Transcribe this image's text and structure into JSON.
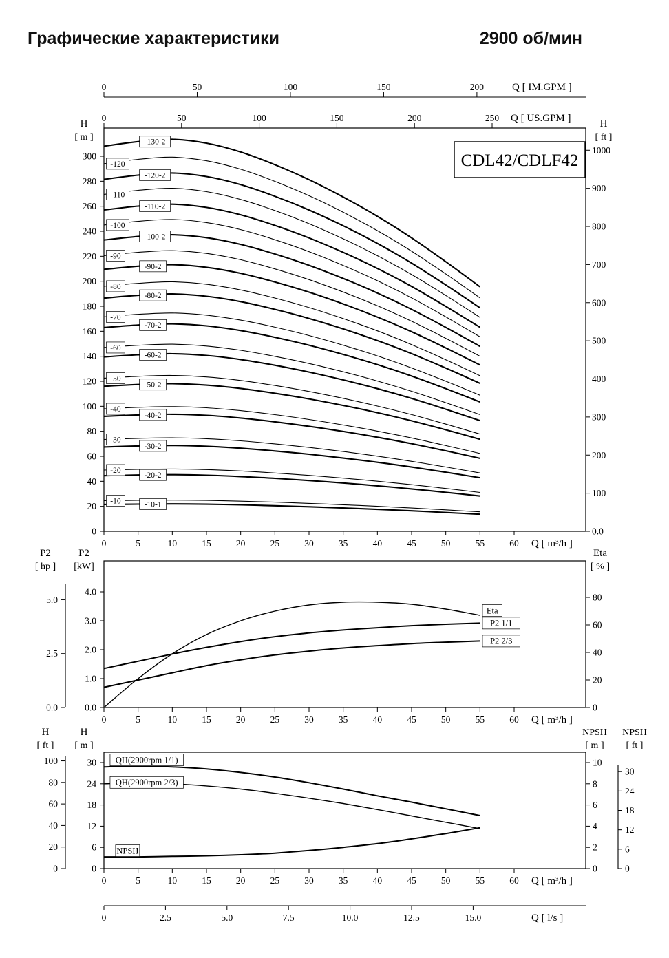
{
  "header": {
    "title": "Графические характеристики",
    "rpm": "2900 об/мин"
  },
  "model_box": "CDL42/CDLF42",
  "chart_data": [
    {
      "id": "qh-main",
      "type": "line",
      "title": "CDL42/CDLF42 Q-H curves, 2900 rpm",
      "x_axis": {
        "unit": "Q [ m³/h ]",
        "ticks": [
          "0",
          "5",
          "10",
          "15",
          "20",
          "25",
          "30",
          "35",
          "40",
          "45",
          "50",
          "55",
          "60"
        ]
      },
      "xlim_m3h": [
        0,
        70.5
      ],
      "top_axes": [
        {
          "unit": "Q [ IM.GPM ]",
          "ticks": [
            "0",
            "50",
            "100",
            "150",
            "200"
          ],
          "m3h_per_unit": 0.27277
        },
        {
          "unit": "Q [ US.GPM ]",
          "ticks": [
            "0",
            "50",
            "100",
            "150",
            "200",
            "250"
          ],
          "m3h_per_unit": 0.22712
        }
      ],
      "y_left": {
        "title": [
          "H",
          "[ m ]"
        ],
        "ticks": [
          "0",
          "20",
          "40",
          "60",
          "80",
          "100",
          "120",
          "140",
          "160",
          "180",
          "200",
          "220",
          "240",
          "260",
          "280",
          "300"
        ]
      },
      "y_right": {
        "title": [
          "H",
          "[ ft ]"
        ],
        "ticks": [
          "0.0",
          "100",
          "200",
          "300",
          "400",
          "500",
          "600",
          "700",
          "800",
          "900",
          "1000"
        ],
        "m_per_unit": 0.3048
      },
      "ylim_m": [
        0,
        323
      ],
      "q": [
        0,
        5,
        10,
        15,
        20,
        25,
        30,
        35,
        40,
        45,
        50,
        55
      ],
      "relative_head": [
        1.0,
        1.012,
        1.018,
        1.008,
        0.985,
        0.952,
        0.913,
        0.868,
        0.818,
        0.762,
        0.7,
        0.635
      ],
      "curves": [
        {
          "label": "-130-2",
          "shutoff_head_m": 308,
          "bold": true,
          "indent": true
        },
        {
          "label": "-120",
          "shutoff_head_m": 294,
          "bold": false,
          "indent": false
        },
        {
          "label": "-120-2",
          "shutoff_head_m": 281.5,
          "bold": true,
          "indent": true
        },
        {
          "label": "-110",
          "shutoff_head_m": 269.5,
          "bold": false,
          "indent": false
        },
        {
          "label": "-110-2",
          "shutoff_head_m": 257,
          "bold": true,
          "indent": true
        },
        {
          "label": "-100",
          "shutoff_head_m": 245,
          "bold": false,
          "indent": false
        },
        {
          "label": "-100-2",
          "shutoff_head_m": 233,
          "bold": true,
          "indent": true
        },
        {
          "label": "-90",
          "shutoff_head_m": 220.5,
          "bold": false,
          "indent": false
        },
        {
          "label": "-90-2",
          "shutoff_head_m": 209.5,
          "bold": true,
          "indent": true
        },
        {
          "label": "-80",
          "shutoff_head_m": 196,
          "bold": false,
          "indent": false
        },
        {
          "label": "-80-2",
          "shutoff_head_m": 186.5,
          "bold": true,
          "indent": true
        },
        {
          "label": "-70",
          "shutoff_head_m": 171.5,
          "bold": false,
          "indent": false
        },
        {
          "label": "-70-2",
          "shutoff_head_m": 163,
          "bold": true,
          "indent": true
        },
        {
          "label": "-60",
          "shutoff_head_m": 147,
          "bold": false,
          "indent": false
        },
        {
          "label": "-60-2",
          "shutoff_head_m": 139.5,
          "bold": true,
          "indent": true
        },
        {
          "label": "-50",
          "shutoff_head_m": 122.5,
          "bold": false,
          "indent": false
        },
        {
          "label": "-50-2",
          "shutoff_head_m": 116,
          "bold": true,
          "indent": true
        },
        {
          "label": "-40",
          "shutoff_head_m": 98,
          "bold": false,
          "indent": false
        },
        {
          "label": "-40-2",
          "shutoff_head_m": 92,
          "bold": true,
          "indent": true
        },
        {
          "label": "-30",
          "shutoff_head_m": 73.5,
          "bold": false,
          "indent": false
        },
        {
          "label": "-30-2",
          "shutoff_head_m": 67.5,
          "bold": true,
          "indent": true
        },
        {
          "label": "-20",
          "shutoff_head_m": 49,
          "bold": false,
          "indent": false
        },
        {
          "label": "-20-2",
          "shutoff_head_m": 44.5,
          "bold": true,
          "indent": true
        },
        {
          "label": "-10",
          "shutoff_head_m": 24.5,
          "bold": false,
          "indent": false
        },
        {
          "label": "-10-1",
          "shutoff_head_m": 21.5,
          "bold": true,
          "indent": true
        }
      ]
    },
    {
      "id": "power-eta",
      "type": "line",
      "title": "P2 and efficiency curves",
      "x_axis": {
        "unit": "Q [ m³/h ]",
        "ticks": [
          "0",
          "5",
          "10",
          "15",
          "20",
          "25",
          "30",
          "35",
          "40",
          "45",
          "50",
          "55",
          "60"
        ]
      },
      "y_hp": {
        "title": [
          "P2",
          "[ hp ]"
        ],
        "ticks": [
          "0.0",
          "2.5",
          "5.0"
        ],
        "kw_per_unit": 0.7457
      },
      "y_kw": {
        "title": [
          "P2",
          "[kW]"
        ],
        "ticks": [
          "0.0",
          "1.0",
          "2.0",
          "3.0",
          "4.0"
        ]
      },
      "y_eta": {
        "title": [
          "Eta",
          "[ % ]"
        ],
        "ticks": [
          "0",
          "20",
          "40",
          "60",
          "80"
        ]
      },
      "ylim_kw": [
        0,
        5.07
      ],
      "ylim_eta_pct": [
        0,
        106
      ],
      "q": [
        0,
        5,
        10,
        15,
        20,
        25,
        30,
        35,
        40,
        45,
        50,
        55
      ],
      "series": [
        {
          "name": "Eta",
          "axis": "eta",
          "width": 1.4,
          "label_dy": -7,
          "values": [
            0,
            21,
            39,
            53,
            63,
            70,
            74.5,
            76.5,
            76.5,
            75,
            71.5,
            67
          ]
        },
        {
          "name": "P2  1/1",
          "axis": "kw",
          "width": 2.0,
          "label_dy": 0,
          "values": [
            1.35,
            1.6,
            1.85,
            2.08,
            2.28,
            2.45,
            2.58,
            2.68,
            2.76,
            2.83,
            2.88,
            2.92
          ]
        },
        {
          "name": "P2  2/3",
          "axis": "kw",
          "width": 2.0,
          "label_dy": 0,
          "values": [
            0.7,
            0.95,
            1.2,
            1.45,
            1.65,
            1.82,
            1.95,
            2.06,
            2.14,
            2.21,
            2.26,
            2.3
          ]
        }
      ]
    },
    {
      "id": "qh-single-npsh",
      "type": "line",
      "title": "Single-stage QH and NPSH curves",
      "x_axis": {
        "unit": "Q [ m³/h ]",
        "ticks": [
          "0",
          "5",
          "10",
          "15",
          "20",
          "25",
          "30",
          "35",
          "40",
          "45",
          "50",
          "55",
          "60"
        ]
      },
      "x_axis2": {
        "unit": "Q [ l/s ]",
        "ticks": [
          "0",
          "2.5",
          "5.0",
          "7.5",
          "10.0",
          "12.5",
          "15.0"
        ],
        "m3h_per_unit": 3.6
      },
      "y_ft": {
        "title": [
          "H",
          "[ ft ]"
        ],
        "ticks": [
          "0",
          "20",
          "40",
          "60",
          "80",
          "100"
        ],
        "m_per_unit": 0.3048
      },
      "y_m": {
        "title": [
          "H",
          "[ m ]"
        ],
        "ticks": [
          "0",
          "6",
          "12",
          "18",
          "24",
          "30"
        ]
      },
      "y_npsh_m": {
        "title": [
          "NPSH",
          "[ m ]"
        ],
        "ticks": [
          "0",
          "2",
          "4",
          "6",
          "8",
          "10"
        ]
      },
      "y_npsh_ft": {
        "title": [
          "NPSH",
          "[ ft ]"
        ],
        "ticks": [
          "0",
          "6",
          "12",
          "18",
          "24",
          "30"
        ],
        "m_per_unit": 0.3048
      },
      "ylim_h_m": [
        0,
        32.9
      ],
      "ylim_npsh_m": [
        0,
        11
      ],
      "q": [
        0,
        5,
        10,
        15,
        20,
        25,
        30,
        35,
        40,
        45,
        50,
        55
      ],
      "series": [
        {
          "name": "QH(2900rpm 1/1)",
          "axis": "h",
          "width": 2.0,
          "label_q": 0.9,
          "label_dy": -10,
          "values": [
            28.8,
            29.0,
            28.8,
            28.2,
            27.2,
            25.9,
            24.3,
            22.5,
            20.6,
            18.8,
            16.9,
            15.0
          ]
        },
        {
          "name": "QH(2900rpm 2/3)",
          "axis": "h",
          "width": 1.4,
          "label_q": 0.9,
          "label_dy": -2,
          "values": [
            24.0,
            24.2,
            24.0,
            23.4,
            22.5,
            21.3,
            19.9,
            18.4,
            16.7,
            14.9,
            13.1,
            11.3
          ]
        },
        {
          "name": "NPSH",
          "axis": "npsh",
          "width": 2.0,
          "label_q": 1.7,
          "label_dy": -9,
          "values": [
            1.1,
            1.1,
            1.15,
            1.2,
            1.3,
            1.45,
            1.7,
            2.0,
            2.35,
            2.8,
            3.3,
            3.85
          ]
        }
      ]
    }
  ]
}
